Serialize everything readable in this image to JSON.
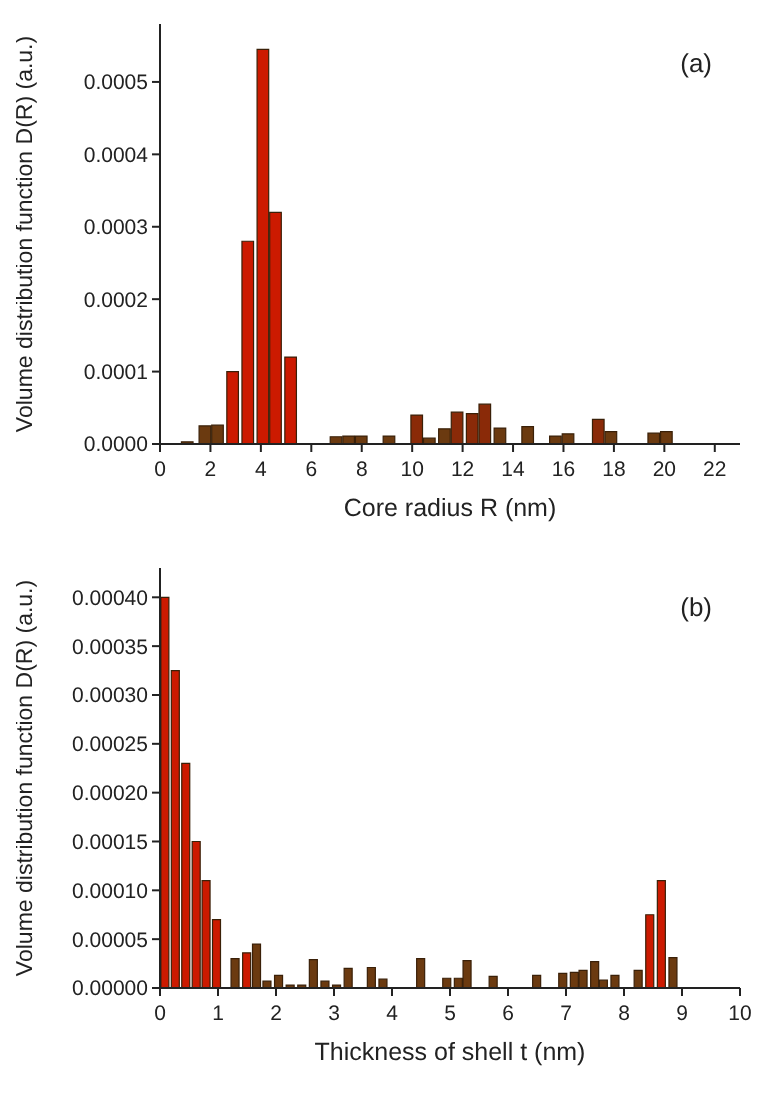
{
  "chart_data": [
    {
      "type": "bar",
      "xlabel": "Core radius R (nm)",
      "ylabel": "Volume distribution function D(R) (a.u.)",
      "annotations": [
        "(a)"
      ],
      "x": [
        1.1,
        1.8,
        2.3,
        2.9,
        3.5,
        4.1,
        4.6,
        5.2,
        7.0,
        7.5,
        8.0,
        9.1,
        10.2,
        10.7,
        11.3,
        11.8,
        12.4,
        12.9,
        13.5,
        14.6,
        15.7,
        16.2,
        17.4,
        17.9,
        19.6,
        20.1
      ],
      "values": [
        3e-06,
        2.5e-05,
        2.6e-05,
        0.0001,
        0.00028,
        0.000545,
        0.00032,
        0.00012,
        1e-05,
        1.1e-05,
        1.1e-05,
        1.1e-05,
        4e-05,
        8e-06,
        2.1e-05,
        4.4e-05,
        4.2e-05,
        5.5e-05,
        2.2e-05,
        2.4e-05,
        1.1e-05,
        1.4e-05,
        3.4e-05,
        1.7e-05,
        1.5e-05,
        1.7e-05
      ],
      "colors": [
        "#6b3a10",
        "#6b3a10",
        "#6b3a10",
        "#cc1a00",
        "#cc1a00",
        "#cc1a00",
        "#cc1a00",
        "#cc1a00",
        "#6b3a10",
        "#6b3a10",
        "#6b3a10",
        "#6b3a10",
        "#8a2a08",
        "#6b3a10",
        "#6b3a10",
        "#8a2a08",
        "#8a2a08",
        "#8a2a08",
        "#6b3a10",
        "#6b3a10",
        "#6b3a10",
        "#6b3a10",
        "#8a2a08",
        "#6b3a10",
        "#6b3a10",
        "#6b3a10"
      ],
      "xlim": [
        0,
        23
      ],
      "xticks": [
        0,
        2,
        4,
        6,
        8,
        10,
        12,
        14,
        16,
        18,
        20,
        22
      ],
      "ylim": [
        0,
        0.00058
      ],
      "yticks": [
        {
          "value": 0,
          "label": "0.0000"
        },
        {
          "value": 0.0001,
          "label": "0.0001"
        },
        {
          "value": 0.0002,
          "label": "0.0002"
        },
        {
          "value": 0.0003,
          "label": "0.0003"
        },
        {
          "value": 0.0004,
          "label": "0.0004"
        },
        {
          "value": 0.0005,
          "label": "0.0005"
        }
      ],
      "grid": false,
      "legend": false
    },
    {
      "type": "bar",
      "xlabel": "Thickness of shell t (nm)",
      "ylabel": "Volume distribution function D(R) (a.u.)",
      "annotations": [
        "(b)"
      ],
      "x": [
        0.09,
        0.27,
        0.45,
        0.63,
        0.8,
        0.98,
        1.3,
        1.5,
        1.67,
        1.85,
        2.05,
        2.25,
        2.45,
        2.65,
        2.85,
        3.05,
        3.25,
        3.65,
        3.85,
        4.5,
        4.95,
        5.15,
        5.3,
        5.75,
        6.5,
        6.95,
        7.15,
        7.3,
        7.5,
        7.65,
        7.85,
        8.25,
        8.45,
        8.65,
        8.85
      ],
      "values": [
        0.0004,
        0.000325,
        0.00023,
        0.00015,
        0.00011,
        7e-05,
        3e-05,
        3.6e-05,
        4.5e-05,
        7e-06,
        1.3e-05,
        3e-06,
        3e-06,
        2.9e-05,
        7e-06,
        3e-06,
        2e-05,
        2.1e-05,
        9e-06,
        3e-05,
        1e-05,
        1e-05,
        2.8e-05,
        1.2e-05,
        1.3e-05,
        1.5e-05,
        1.6e-05,
        1.8e-05,
        2.7e-05,
        8e-06,
        1.3e-05,
        1.8e-05,
        7.5e-05,
        0.00011,
        3.1e-05
      ],
      "colors": [
        "#cc1a00",
        "#cc1a00",
        "#cc1a00",
        "#cc1a00",
        "#cc1a00",
        "#cc1a00",
        "#6b3a10",
        "#cc1a00",
        "#6b3a10",
        "#6b3a10",
        "#6b3a10",
        "#6b3a10",
        "#6b3a10",
        "#6b3a10",
        "#6b3a10",
        "#6b3a10",
        "#6b3a10",
        "#6b3a10",
        "#6b3a10",
        "#6b3a10",
        "#6b3a10",
        "#6b3a10",
        "#6b3a10",
        "#6b3a10",
        "#6b3a10",
        "#6b3a10",
        "#6b3a10",
        "#6b3a10",
        "#6b3a10",
        "#6b3a10",
        "#6b3a10",
        "#6b3a10",
        "#cc1a00",
        "#cc1a00",
        "#6b3a10"
      ],
      "xlim": [
        0,
        10
      ],
      "xticks": [
        0,
        1,
        2,
        3,
        4,
        5,
        6,
        7,
        8,
        9,
        10
      ],
      "ylim": [
        0,
        0.00043
      ],
      "yticks": [
        {
          "value": 0,
          "label": "0.00000"
        },
        {
          "value": 5e-05,
          "label": "0.00005"
        },
        {
          "value": 0.0001,
          "label": "0.00010"
        },
        {
          "value": 0.00015,
          "label": "0.00015"
        },
        {
          "value": 0.0002,
          "label": "0.00020"
        },
        {
          "value": 0.00025,
          "label": "0.00025"
        },
        {
          "value": 0.0003,
          "label": "0.00030"
        },
        {
          "value": 0.00035,
          "label": "0.00035"
        },
        {
          "value": 0.0004,
          "label": "0.00040"
        }
      ],
      "grid": false,
      "legend": false
    }
  ]
}
